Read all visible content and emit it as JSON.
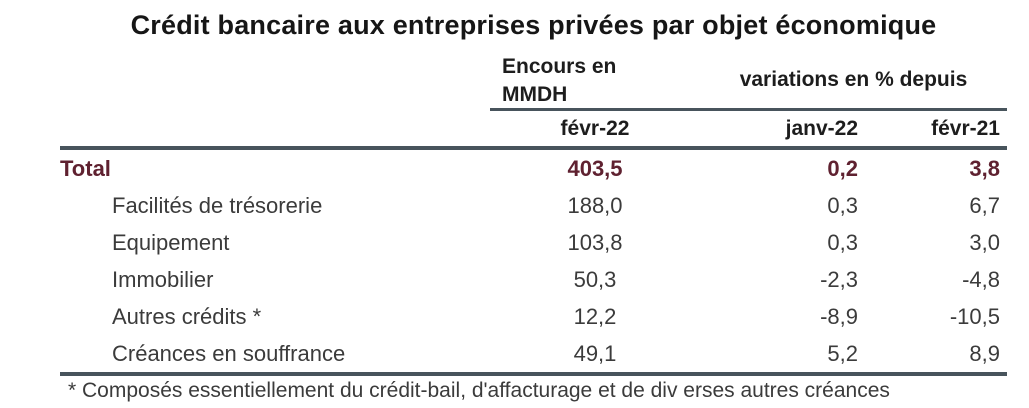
{
  "title": "Crédit bancaire aux entreprises privées par objet économique",
  "table": {
    "group_headers": [
      "Encours en MMDH",
      "variations en % depuis"
    ],
    "columns": [
      "févr-22",
      "janv-22",
      "févr-21"
    ],
    "rows": [
      {
        "label": "Total",
        "encours": "403,5",
        "var_janv": "0,2",
        "var_fevr": "3,8"
      },
      {
        "label": "Facilités de trésorerie",
        "encours": "188,0",
        "var_janv": "0,3",
        "var_fevr": "6,7"
      },
      {
        "label": "Equipement",
        "encours": "103,8",
        "var_janv": "0,3",
        "var_fevr": "3,0"
      },
      {
        "label": "Immobilier",
        "encours": "50,3",
        "var_janv": "-2,3",
        "var_fevr": "-4,8"
      },
      {
        "label": "Autres crédits *",
        "encours": "12,2",
        "var_janv": "-8,9",
        "var_fevr": "-10,5"
      },
      {
        "label": "Créances en souffrance",
        "encours": "49,1",
        "var_janv": "5,2",
        "var_fevr": "8,9"
      }
    ],
    "footnote": "* Composés essentiellement du crédit-bail, d'affacturage et de div erses autres créances"
  },
  "colors": {
    "accent": "#5f2130",
    "rule": "#48545c",
    "body-text": "#3b3b3b",
    "title-text": "#161616"
  },
  "chart_data": {
    "type": "table",
    "title": "Crédit bancaire aux entreprises privées par objet économique",
    "column_groups": [
      "Encours en MMDH",
      "variations en % depuis"
    ],
    "columns": [
      "févr-22",
      "janv-22",
      "févr-21"
    ],
    "units": {
      "févr-22": "MMDH",
      "janv-22": "%",
      "févr-21": "%"
    },
    "rows": [
      {
        "label": "Total",
        "values": [
          403.5,
          0.2,
          3.8
        ]
      },
      {
        "label": "Facilités de trésorerie",
        "values": [
          188.0,
          0.3,
          6.7
        ]
      },
      {
        "label": "Equipement",
        "values": [
          103.8,
          0.3,
          3.0
        ]
      },
      {
        "label": "Immobilier",
        "values": [
          50.3,
          -2.3,
          -4.8
        ]
      },
      {
        "label": "Autres crédits *",
        "values": [
          12.2,
          -8.9,
          -10.5
        ]
      },
      {
        "label": "Créances en souffrance",
        "values": [
          49.1,
          5.2,
          8.9
        ]
      }
    ],
    "footnote": "* Composés essentiellement du crédit-bail, d'affacturage et de div erses autres créances"
  }
}
